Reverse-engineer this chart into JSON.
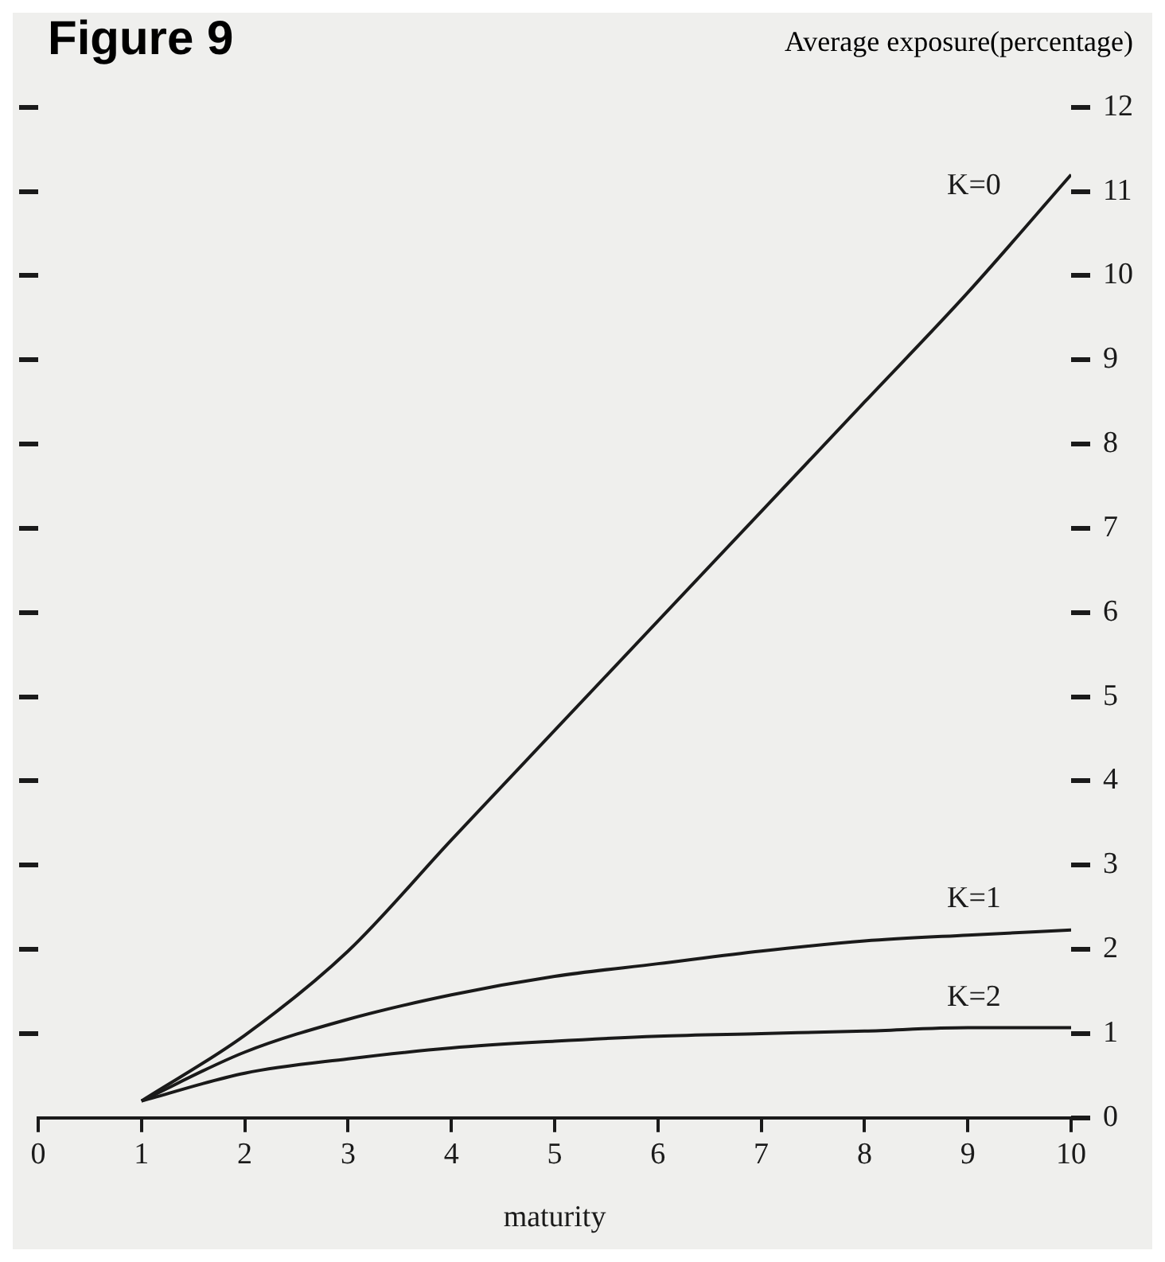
{
  "chart_data": {
    "type": "line",
    "title": "Figure 9",
    "xlabel": "maturity",
    "ylabel": "Average exposure(percentage)",
    "x": [
      1,
      2,
      3,
      4,
      5,
      6,
      7,
      8,
      9,
      10
    ],
    "series": [
      {
        "name": "K=0",
        "color": "#1a1a1a",
        "values": [
          0.2,
          0.98,
          1.98,
          3.3,
          4.6,
          5.9,
          7.2,
          8.5,
          9.8,
          11.2
        ]
      },
      {
        "name": "K=1",
        "color": "#1a1a1a",
        "values": [
          0.2,
          0.78,
          1.17,
          1.46,
          1.68,
          1.83,
          1.98,
          2.1,
          2.17,
          2.23
        ]
      },
      {
        "name": "K=2",
        "color": "#1a1a1a",
        "values": [
          0.2,
          0.53,
          0.7,
          0.83,
          0.91,
          0.97,
          1.0,
          1.03,
          1.07,
          1.07
        ]
      }
    ],
    "xlim": [
      0,
      10
    ],
    "xticks": [
      0,
      1,
      2,
      3,
      4,
      5,
      6,
      7,
      8,
      9,
      10
    ],
    "ylim": [
      0,
      12
    ],
    "yticks": [
      0,
      1,
      2,
      3,
      4,
      5,
      6,
      7,
      8,
      9,
      10,
      11,
      12
    ],
    "grid": false,
    "marker": "none",
    "line_style": "solid"
  }
}
